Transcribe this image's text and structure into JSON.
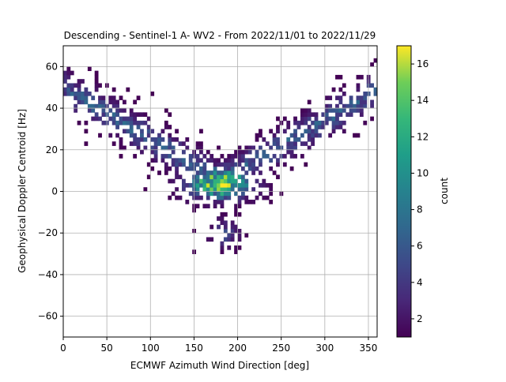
{
  "chart_data": {
    "type": "heatmap",
    "title": "Descending - Sentinel-1 A- WV2 - From 2022/11/01 to 2022/11/29",
    "xlabel": "ECMWF Azimuth Wind Direction [deg]",
    "ylabel": "Geophysical Doppler Centroid [Hz]",
    "colorbar_label": "count",
    "xlim": [
      0,
      360
    ],
    "ylim": [
      -70,
      70
    ],
    "x_ticks": [
      0,
      50,
      100,
      150,
      200,
      250,
      300,
      350
    ],
    "y_ticks": [
      -60,
      -40,
      -20,
      0,
      20,
      40,
      60
    ],
    "colorbar_range": [
      1,
      17
    ],
    "colorbar_ticks": [
      2,
      4,
      6,
      8,
      10,
      12,
      14,
      16
    ],
    "colormap": "viridis",
    "grid": true,
    "bin_size": {
      "x": 4,
      "y": 2
    },
    "density_model": {
      "description": "2D histogram of counts; V-shaped cloud with peak near azimuth 180 deg and 5 Hz",
      "peak_count": 17,
      "center_x": 180,
      "center_y": 4,
      "arms": [
        {
          "from": [
            180,
            5
          ],
          "to": [
            20,
            45
          ]
        },
        {
          "from": [
            180,
            5
          ],
          "to": [
            345,
            45
          ]
        }
      ]
    }
  }
}
